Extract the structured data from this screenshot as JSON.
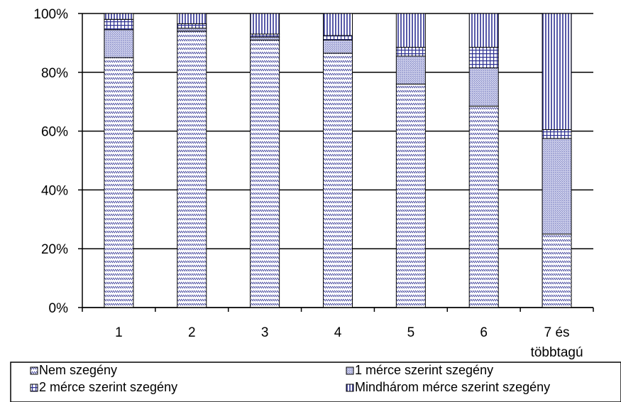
{
  "chart_data": {
    "type": "bar",
    "stacked": "percent",
    "title": "",
    "xlabel": "",
    "ylabel": "",
    "ylim": [
      0,
      100
    ],
    "y_ticks": [
      "0%",
      "20%",
      "40%",
      "60%",
      "80%",
      "100%"
    ],
    "categories": [
      "1",
      "2",
      "3",
      "4",
      "5",
      "6",
      "7 és többtagú"
    ],
    "grid": "horizontal",
    "legend_position": "bottom",
    "series": [
      {
        "name": "Nem szegény",
        "pattern": "diagonal-dash",
        "color": "#2e3192",
        "values": [
          85.0,
          94.0,
          91.0,
          86.5,
          76.0,
          68.5,
          25.0
        ]
      },
      {
        "name": "1 mérce szerint szegény",
        "pattern": "dots",
        "color": "#a6a9d8",
        "values": [
          9.5,
          1.0,
          1.0,
          4.5,
          9.5,
          13.0,
          32.5
        ]
      },
      {
        "name": "2 mérce szerint szegény",
        "pattern": "grid",
        "color": "#2e3192",
        "values": [
          3.5,
          1.5,
          1.0,
          1.5,
          3.0,
          7.0,
          3.0
        ]
      },
      {
        "name": "Mindhárom mérce szerint szegény",
        "pattern": "vertical-lines",
        "color": "#2e3192",
        "values": [
          2.0,
          3.5,
          7.0,
          7.5,
          11.5,
          11.5,
          39.5
        ]
      }
    ]
  }
}
